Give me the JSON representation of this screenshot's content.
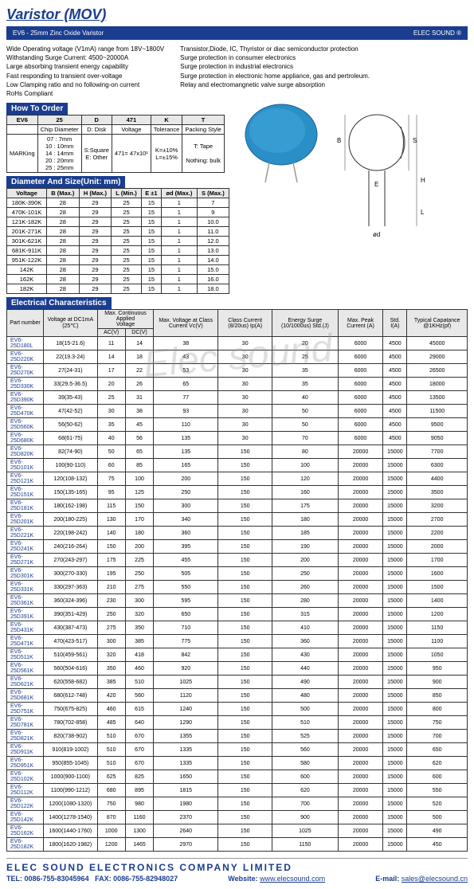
{
  "title": "Varistor (MOV)",
  "banner": {
    "left": "EV6 - 25mm Zinc Oxide Varistor",
    "right": "ELEC SOUND ®"
  },
  "features": {
    "left": [
      "Wide Operating voltage (V1mA) range from 18V~1800V",
      "Withstanding Surge Current: 4500~20000A",
      "Large absorbing transient energy capability",
      "Fast responding to transient over-voltage",
      "Low Clamping ratio and no following-on current",
      "RoHs Compliant"
    ],
    "right": [
      "Transistor,Diode, IC, Thyristor or diac semiconductor protection",
      "Surge protection in consumer electronics",
      "Surge protection in industrial electronics",
      "Surge protection in electronic home appliance, gas and pertroleum.",
      "Relay and electromangnetic valve surge absorption"
    ]
  },
  "howToOrder": {
    "header": "How To Order",
    "cols": [
      "EV6",
      "25",
      "D",
      "471",
      "K",
      "T"
    ],
    "rows": [
      [
        "",
        "Chip Diameter",
        "D: Disk",
        "Voltage",
        "Tolerance",
        "Packing Style"
      ],
      [
        "MARKing",
        "07 : 7mm\n10 : 10mm\n14 : 14mm\n20 : 20mm\n25 : 25mm",
        "S:Square\nE: Other",
        "471= 47x10¹",
        "K=±10%\nL=±15%",
        "T: Tape\n\nNothing: bulk"
      ]
    ]
  },
  "dimensions": {
    "header": "Diameter And Size(Unit: mm)",
    "cols": [
      "Voltage",
      "B (Max.)",
      "H (Max.)",
      "L (Min.)",
      "E ±1",
      "ød (Max.)",
      "S (Max.)"
    ],
    "rows": [
      [
        "180K-390K",
        "28",
        "29",
        "25",
        "15",
        "1",
        "7"
      ],
      [
        "470K-101K",
        "28",
        "29",
        "25",
        "15",
        "1",
        "9"
      ],
      [
        "121K-182K",
        "28",
        "29",
        "25",
        "15",
        "1",
        "10.0"
      ],
      [
        "201K-271K",
        "28",
        "29",
        "25",
        "15",
        "1",
        "11.0"
      ],
      [
        "301K-621K",
        "28",
        "29",
        "25",
        "15",
        "1",
        "12.0"
      ],
      [
        "681K-911K",
        "28",
        "29",
        "25",
        "15",
        "1",
        "13.0"
      ],
      [
        "951K-122K",
        "28",
        "29",
        "25",
        "15",
        "1",
        "14.0"
      ],
      [
        "142K",
        "28",
        "29",
        "25",
        "15",
        "1",
        "15.0"
      ],
      [
        "162K",
        "28",
        "29",
        "25",
        "15",
        "1",
        "16.0"
      ],
      [
        "182K",
        "28",
        "29",
        "25",
        "15",
        "1",
        "18.0"
      ]
    ]
  },
  "elec": {
    "header": "Electrical Characteristics",
    "cols": [
      "Part number",
      "Voltage at DC1mA (25℃)",
      "Max. Continuous Applied Voltage AC(V)",
      "DC(V)",
      "Max. Voltage at Class Current Vc(V)",
      "Class Current (8/20us) Ip(A)",
      "Energy Surge (10/1000us) Std.(J)",
      "Max. Peak Current (A)",
      "Std. I(A)",
      "Typical Capatance @1KHz(pf)"
    ],
    "rows": [
      [
        "EV6-25D180L",
        "18(15-21.6)",
        "11",
        "14",
        "38",
        "30",
        "20",
        "6000",
        "4500",
        "45000"
      ],
      [
        "EV6-25D220K",
        "22(19.3-24)",
        "14",
        "18",
        "43",
        "30",
        "25",
        "6000",
        "4500",
        "29000"
      ],
      [
        "EV6-25D270K",
        "27(24-31)",
        "17",
        "22",
        "53",
        "30",
        "35",
        "6000",
        "4500",
        "26500"
      ],
      [
        "EV6-25D330K",
        "33(29.5-36.5)",
        "20",
        "26",
        "65",
        "30",
        "35",
        "6000",
        "4500",
        "18000"
      ],
      [
        "EV6-25D390K",
        "39(35-43)",
        "25",
        "31",
        "77",
        "30",
        "40",
        "6000",
        "4500",
        "13500"
      ],
      [
        "EV6-25D470K",
        "47(42-52)",
        "30",
        "38",
        "93",
        "30",
        "50",
        "6000",
        "4500",
        "11500"
      ],
      [
        "EV6-25D560K",
        "56(50-62)",
        "35",
        "45",
        "110",
        "30",
        "50",
        "6000",
        "4500",
        "9500"
      ],
      [
        "EV6-25D680K",
        "68(61-75)",
        "40",
        "56",
        "135",
        "30",
        "70",
        "6000",
        "4500",
        "9050"
      ],
      [
        "EV6-25D820K",
        "82(74-90)",
        "50",
        "65",
        "135",
        "150",
        "80",
        "20000",
        "15000",
        "7700"
      ],
      [
        "EV6-25D101K",
        "100(90-110)",
        "60",
        "85",
        "165",
        "150",
        "100",
        "20000",
        "15000",
        "6300"
      ],
      [
        "EV6-25D121K",
        "120(108-132)",
        "75",
        "100",
        "200",
        "150",
        "120",
        "20000",
        "15000",
        "4400"
      ],
      [
        "EV6-25D151K",
        "150(135-165)",
        "95",
        "125",
        "250",
        "150",
        "160",
        "20000",
        "15000",
        "3500"
      ],
      [
        "EV6-25D181K",
        "180(162-198)",
        "115",
        "150",
        "300",
        "150",
        "175",
        "20000",
        "15000",
        "3200"
      ],
      [
        "EV6-25D201K",
        "200(180-225)",
        "130",
        "170",
        "340",
        "150",
        "180",
        "20000",
        "15000",
        "2700"
      ],
      [
        "EV6-25D221K",
        "220(198-242)",
        "140",
        "180",
        "360",
        "150",
        "185",
        "20000",
        "15000",
        "2200"
      ],
      [
        "EV6-25D241K",
        "240(216-264)",
        "150",
        "200",
        "395",
        "150",
        "190",
        "20000",
        "15000",
        "2000"
      ],
      [
        "EV6-25D271K",
        "270(243-297)",
        "175",
        "225",
        "455",
        "150",
        "200",
        "20000",
        "15000",
        "1700"
      ],
      [
        "EV6-25D301K",
        "300(270-330)",
        "195",
        "250",
        "505",
        "150",
        "250",
        "20000",
        "15000",
        "1600"
      ],
      [
        "EV6-25D331K",
        "330(297-363)",
        "210",
        "275",
        "550",
        "150",
        "260",
        "20000",
        "15000",
        "1500"
      ],
      [
        "EV6-25D361K",
        "360(324-396)",
        "230",
        "300",
        "595",
        "150",
        "280",
        "20000",
        "15000",
        "1400"
      ],
      [
        "EV6-25D391K",
        "390(351-429)",
        "250",
        "320",
        "650",
        "150",
        "315",
        "20000",
        "15000",
        "1200"
      ],
      [
        "EV6-25D431K",
        "430(387-473)",
        "275",
        "350",
        "710",
        "150",
        "410",
        "20000",
        "15000",
        "1150"
      ],
      [
        "EV6-25D471K",
        "470(423-517)",
        "300",
        "385",
        "775",
        "150",
        "360",
        "20000",
        "15000",
        "1100"
      ],
      [
        "EV6-25D511K",
        "510(459-561)",
        "320",
        "418",
        "842",
        "150",
        "430",
        "20000",
        "15000",
        "1050"
      ],
      [
        "EV6-25D561K",
        "560(504-616)",
        "350",
        "460",
        "920",
        "150",
        "440",
        "20000",
        "15000",
        "950"
      ],
      [
        "EV6-25D621K",
        "620(558-682)",
        "385",
        "510",
        "1025",
        "150",
        "490",
        "20000",
        "15000",
        "900"
      ],
      [
        "EV6-25D681K",
        "680(612-748)",
        "420",
        "560",
        "1120",
        "150",
        "480",
        "20000",
        "15000",
        "850"
      ],
      [
        "EV6-25D751K",
        "750(675-825)",
        "460",
        "615",
        "1240",
        "150",
        "500",
        "20000",
        "15000",
        "800"
      ],
      [
        "EV6-25D781K",
        "780(702-858)",
        "485",
        "640",
        "1290",
        "150",
        "510",
        "20000",
        "15000",
        "750"
      ],
      [
        "EV6-25D821K",
        "820(738-902)",
        "510",
        "670",
        "1355",
        "150",
        "525",
        "20000",
        "15000",
        "700"
      ],
      [
        "EV6-25D911K",
        "910(819-1002)",
        "510",
        "670",
        "1335",
        "150",
        "560",
        "20000",
        "15000",
        "650"
      ],
      [
        "EV6-25D951K",
        "950(855-1045)",
        "510",
        "670",
        "1335",
        "150",
        "580",
        "20000",
        "15000",
        "620"
      ],
      [
        "EV6-25D102K",
        "1000(900-1100)",
        "625",
        "825",
        "1650",
        "150",
        "600",
        "20000",
        "15000",
        "600"
      ],
      [
        "EV6-25D112K",
        "1100(990-1212)",
        "680",
        "895",
        "1815",
        "150",
        "620",
        "20000",
        "15000",
        "550"
      ],
      [
        "EV6-25D122K",
        "1200(1080-1320)",
        "750",
        "980",
        "1980",
        "150",
        "700",
        "20000",
        "15000",
        "520"
      ],
      [
        "EV6-25D142K",
        "1400(1278-1540)",
        "870",
        "1160",
        "2370",
        "150",
        "900",
        "20000",
        "15000",
        "500"
      ],
      [
        "EV6-25D162K",
        "1600(1440-1760)",
        "1000",
        "1300",
        "2640",
        "150",
        "1025",
        "20000",
        "15000",
        "490"
      ],
      [
        "EV6-25D182K",
        "1800(1620-1982)",
        "1200",
        "1465",
        "2970",
        "150",
        "1150",
        "20000",
        "15000",
        "450"
      ]
    ]
  },
  "footer": {
    "company": "ELEC SOUND ELECTRONICS COMPANY LIMITED",
    "tel": "TEL: 0086-755-83045964",
    "fax": "FAX: 0086-755-82948027",
    "web_label": "Website:",
    "web": "www.elecsound.com",
    "email_label": "E-mail:",
    "email": "sales@elecsound.cn"
  },
  "watermark": "Elec sound"
}
